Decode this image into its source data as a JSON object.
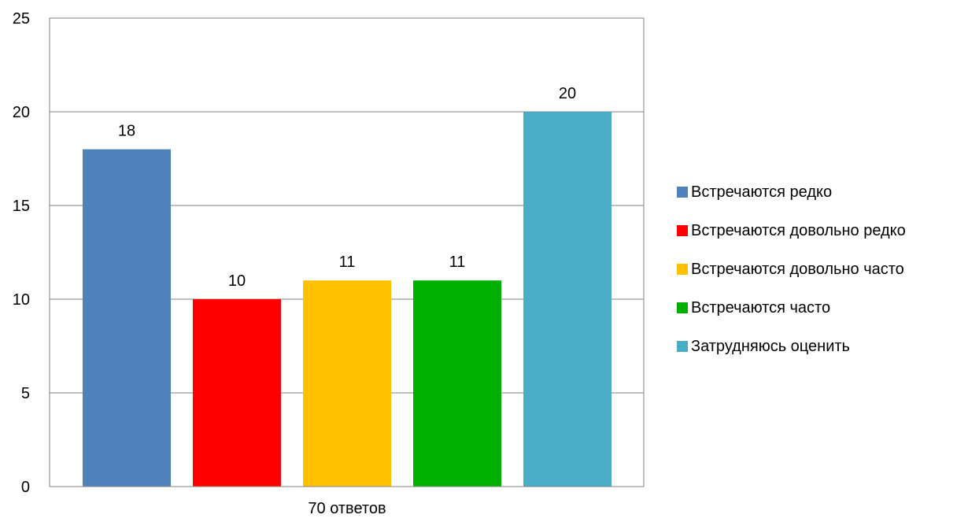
{
  "chart_data": {
    "type": "bar",
    "title": "",
    "xlabel": "",
    "ylabel": "",
    "categories": [
      "70 ответов"
    ],
    "series": [
      {
        "name": "Встречаются редко",
        "values": [
          18
        ],
        "color": "#4f81bd"
      },
      {
        "name": "Встречаются довольно редко",
        "values": [
          10
        ],
        "color": "#ff0000"
      },
      {
        "name": "Встречаются довольно часто",
        "values": [
          11
        ],
        "color": "#ffc000"
      },
      {
        "name": "Встречаются часто",
        "values": [
          11
        ],
        "color": "#00b000"
      },
      {
        "name": "Затрудняюсь оценить",
        "values": [
          20
        ],
        "color": "#4bacc6"
      }
    ],
    "ylim": [
      0,
      25
    ],
    "yticks": [
      0,
      5,
      10,
      15,
      20,
      25
    ],
    "grid": true,
    "data_labels": true,
    "legend_position": "right"
  }
}
